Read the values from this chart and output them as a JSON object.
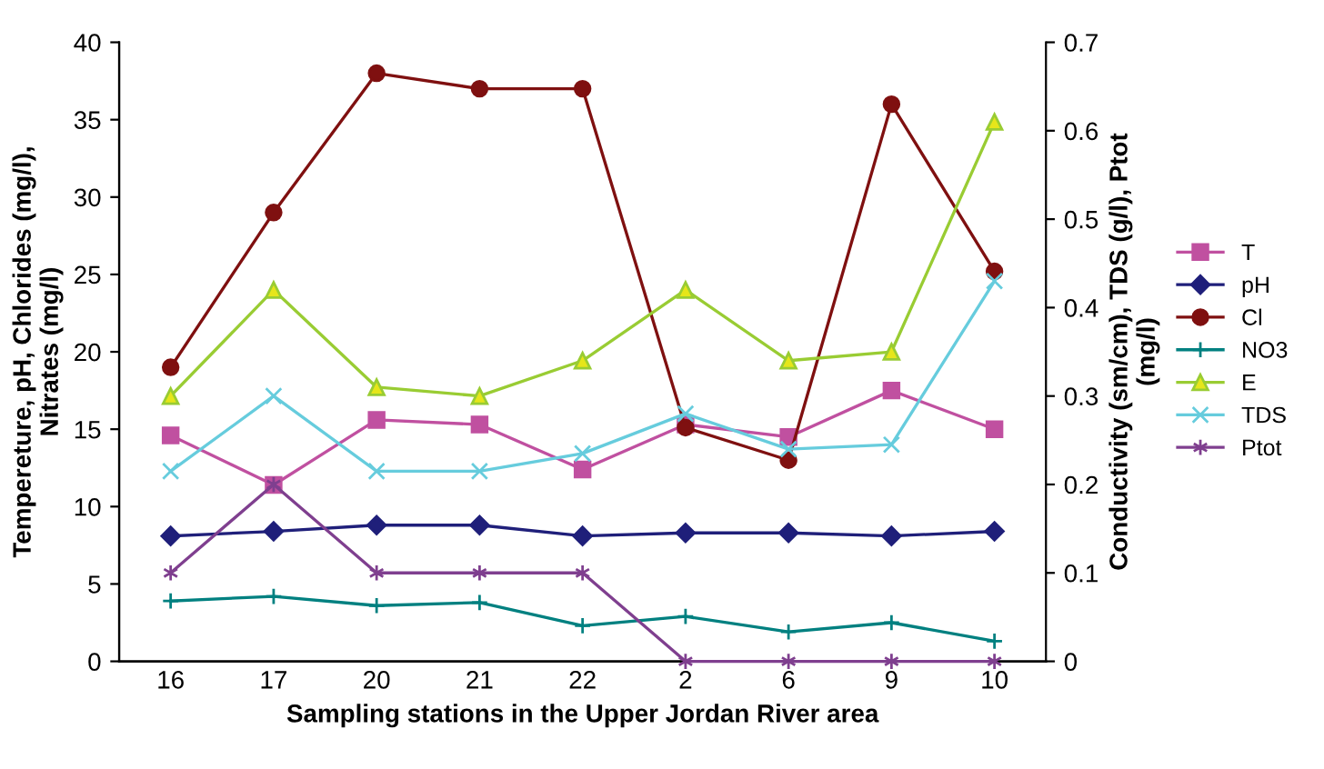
{
  "chart_data": {
    "type": "line",
    "xlabel": "Sampling stations in the Upper Jordan River area",
    "ylabel": "Tempereture, pH, Chlorides (mg/l),\nNitrates (mg/l)",
    "y2label": "Conductivity (sm/cm), TDS (g/l), Ptot\n(mg/l)",
    "categories": [
      "16",
      "17",
      "20",
      "21",
      "22",
      "2",
      "6",
      "9",
      "10"
    ],
    "ylim": [
      0,
      40
    ],
    "yticks": [
      0,
      5,
      10,
      15,
      20,
      25,
      30,
      35,
      40
    ],
    "y2lim": [
      0,
      0.7
    ],
    "y2ticks": [
      0,
      0.1,
      0.2,
      0.3,
      0.4,
      0.5,
      0.6,
      0.7
    ],
    "grid": false,
    "legend": "right",
    "series": [
      {
        "name": "T",
        "color": "#c050a0",
        "marker": "square",
        "values": [
          14.6,
          11.4,
          15.6,
          15.3,
          12.4,
          15.3,
          14.5,
          17.5,
          15.0
        ]
      },
      {
        "name": "pH",
        "color": "#1f1f7a",
        "marker": "diamond",
        "values": [
          8.1,
          8.4,
          8.8,
          8.8,
          8.1,
          8.3,
          8.3,
          8.1,
          8.4
        ]
      },
      {
        "name": "Cl",
        "color": "#7f1010",
        "marker": "circle",
        "values": [
          19,
          29,
          38,
          37,
          37,
          15.1,
          13,
          36,
          25.2
        ]
      },
      {
        "name": "NO3",
        "color": "#008080",
        "marker": "plus",
        "values": [
          3.9,
          4.2,
          3.6,
          3.8,
          2.3,
          2.9,
          1.9,
          2.5,
          1.3
        ]
      },
      {
        "name": "E",
        "color": "#99cc33",
        "marker": "triangle",
        "axis": "y2",
        "values": [
          0.3,
          0.42,
          0.31,
          0.3,
          0.34,
          0.42,
          0.34,
          0.35,
          0.61
        ]
      },
      {
        "name": "TDS",
        "color": "#66ccdd",
        "marker": "x",
        "axis": "y2",
        "values": [
          0.215,
          0.3,
          0.215,
          0.215,
          0.235,
          0.28,
          0.24,
          0.245,
          0.43
        ]
      },
      {
        "name": "Ptot",
        "color": "#7f3f8f",
        "marker": "cross",
        "axis": "y2",
        "values": [
          0.1,
          0.2,
          0.1,
          0.1,
          0.1,
          0,
          0,
          0,
          0
        ]
      }
    ]
  }
}
